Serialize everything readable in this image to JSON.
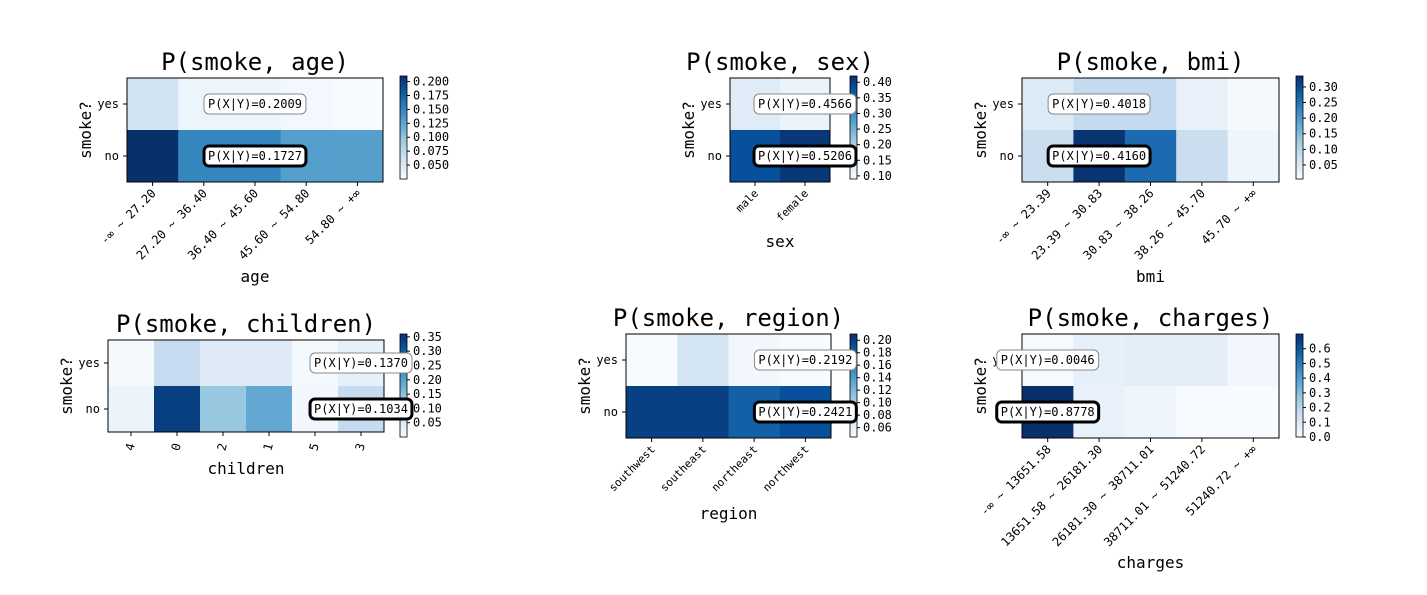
{
  "chart_data": [
    {
      "type": "heatmap",
      "title": "P(smoke, age)",
      "xlabel": "age",
      "ylabel": "smoke?",
      "y_categories": [
        "yes",
        "no"
      ],
      "x_categories": [
        "-∞ ~ 27.20",
        "27.20 ~ 36.40",
        "36.40 ~ 45.60",
        "45.60 ~ 54.80",
        "54.80 ~ +∞"
      ],
      "values": [
        [
          0.06,
          0.035,
          0.035,
          0.03,
          0.025
        ],
        [
          0.21,
          0.15,
          0.15,
          0.13,
          0.13
        ]
      ],
      "colorbar": {
        "ticks": [
          0.05,
          0.075,
          0.1,
          0.125,
          0.15,
          0.175,
          0.2
        ],
        "labels": [
          "0.050",
          "0.075",
          "0.100",
          "0.125",
          "0.150",
          "0.175",
          "0.200"
        ],
        "min": 0.025,
        "max": 0.21
      },
      "annotations": [
        {
          "row": 0,
          "col": 2,
          "text": "P(X|Y)=0.2009",
          "bold": false
        },
        {
          "row": 1,
          "col": 2,
          "text": "P(X|Y)=0.1727",
          "bold": true
        }
      ]
    },
    {
      "type": "heatmap",
      "title": "P(smoke, sex)",
      "xlabel": "sex",
      "ylabel": "smoke?",
      "y_categories": [
        "yes",
        "no"
      ],
      "x_categories": [
        "male",
        "female"
      ],
      "values": [
        [
          0.13,
          0.11
        ],
        [
          0.38,
          0.41
        ]
      ],
      "colorbar": {
        "ticks": [
          0.1,
          0.15,
          0.2,
          0.25,
          0.3,
          0.35,
          0.4
        ],
        "labels": [
          "0.10",
          "0.15",
          "0.20",
          "0.25",
          "0.30",
          "0.35",
          "0.40"
        ],
        "min": 0.09,
        "max": 0.42
      },
      "annotations": [
        {
          "row": 0,
          "col": 1,
          "text": "P(X|Y)=0.4566",
          "bold": false
        },
        {
          "row": 1,
          "col": 1,
          "text": "P(X|Y)=0.5206",
          "bold": true
        }
      ]
    },
    {
      "type": "heatmap",
      "title": "P(smoke, bmi)",
      "xlabel": "bmi",
      "ylabel": "smoke?",
      "y_categories": [
        "yes",
        "no"
      ],
      "x_categories": [
        "-∞ ~ 23.39",
        "23.39 ~ 30.83",
        "30.83 ~ 38.26",
        "38.26 ~ 45.70",
        "45.70 ~ +∞"
      ],
      "values": [
        [
          0.05,
          0.09,
          0.09,
          0.03,
          0.01
        ],
        [
          0.08,
          0.33,
          0.26,
          0.08,
          0.02
        ]
      ],
      "colorbar": {
        "ticks": [
          0.05,
          0.1,
          0.15,
          0.2,
          0.25,
          0.3
        ],
        "labels": [
          "0.05",
          "0.10",
          "0.15",
          "0.20",
          "0.25",
          "0.30"
        ],
        "min": 0.005,
        "max": 0.335
      },
      "annotations": [
        {
          "row": 0,
          "col": 1,
          "text": "P(X|Y)=0.4018",
          "bold": false
        },
        {
          "row": 1,
          "col": 1,
          "text": "P(X|Y)=0.4160",
          "bold": true
        }
      ]
    },
    {
      "type": "heatmap",
      "title": "P(smoke, children)",
      "xlabel": "children",
      "ylabel": "smoke?",
      "y_categories": [
        "yes",
        "no"
      ],
      "x_categories": [
        "4",
        "0",
        "2",
        "1",
        "5",
        "3"
      ],
      "values": [
        [
          0.005,
          0.09,
          0.045,
          0.045,
          0.005,
          0.03
        ],
        [
          0.02,
          0.34,
          0.14,
          0.19,
          0.01,
          0.09
        ]
      ],
      "colorbar": {
        "ticks": [
          0.05,
          0.1,
          0.15,
          0.2,
          0.25,
          0.3,
          0.35
        ],
        "labels": [
          "0.05",
          "0.10",
          "0.15",
          "0.20",
          "0.25",
          "0.30",
          "0.35"
        ],
        "min": 0.0,
        "max": 0.36
      },
      "annotations": [
        {
          "row": 0,
          "col": 5,
          "text": "P(X|Y)=0.1370",
          "bold": false
        },
        {
          "row": 1,
          "col": 5,
          "text": "P(X|Y)=0.1034",
          "bold": true
        }
      ]
    },
    {
      "type": "heatmap",
      "title": "P(smoke, region)",
      "xlabel": "region",
      "ylabel": "smoke?",
      "y_categories": [
        "yes",
        "no"
      ],
      "x_categories": [
        "southwest",
        "southeast",
        "northeast",
        "northwest"
      ],
      "values": [
        [
          0.045,
          0.075,
          0.05,
          0.045
        ],
        [
          0.2,
          0.2,
          0.18,
          0.19
        ]
      ],
      "colorbar": {
        "ticks": [
          0.06,
          0.08,
          0.1,
          0.12,
          0.14,
          0.16,
          0.18,
          0.2
        ],
        "labels": [
          "0.06",
          "0.08",
          "0.10",
          "0.12",
          "0.14",
          "0.16",
          "0.18",
          "0.20"
        ],
        "min": 0.045,
        "max": 0.21
      },
      "annotations": [
        {
          "row": 0,
          "col": 3,
          "text": "P(X|Y)=0.2192",
          "bold": false
        },
        {
          "row": 1,
          "col": 3,
          "text": "P(X|Y)=0.2421",
          "bold": true
        }
      ]
    },
    {
      "type": "heatmap",
      "title": "P(smoke, charges)",
      "xlabel": "charges",
      "ylabel": "smoke?",
      "y_categories": [
        "yes",
        "no"
      ],
      "x_categories": [
        "-∞ ~ 13651.58",
        "13651.58 ~ 26181.30",
        "26181.30 ~ 38711.01",
        "38711.01 ~ 51240.72",
        "51240.72 ~ +∞"
      ],
      "values": [
        [
          0.0,
          0.06,
          0.07,
          0.07,
          0.02
        ],
        [
          0.7,
          0.05,
          0.03,
          0.0,
          0.0
        ]
      ],
      "colorbar": {
        "ticks": [
          0.0,
          0.1,
          0.2,
          0.3,
          0.4,
          0.5,
          0.6
        ],
        "labels": [
          "0.0",
          "0.1",
          "0.2",
          "0.3",
          "0.4",
          "0.5",
          "0.6"
        ],
        "min": 0.0,
        "max": 0.7
      },
      "annotations": [
        {
          "row": 0,
          "col": 0,
          "text": "P(X|Y)=0.0046",
          "bold": false
        },
        {
          "row": 1,
          "col": 0,
          "text": "P(X|Y)=0.8778",
          "bold": true
        }
      ]
    }
  ]
}
